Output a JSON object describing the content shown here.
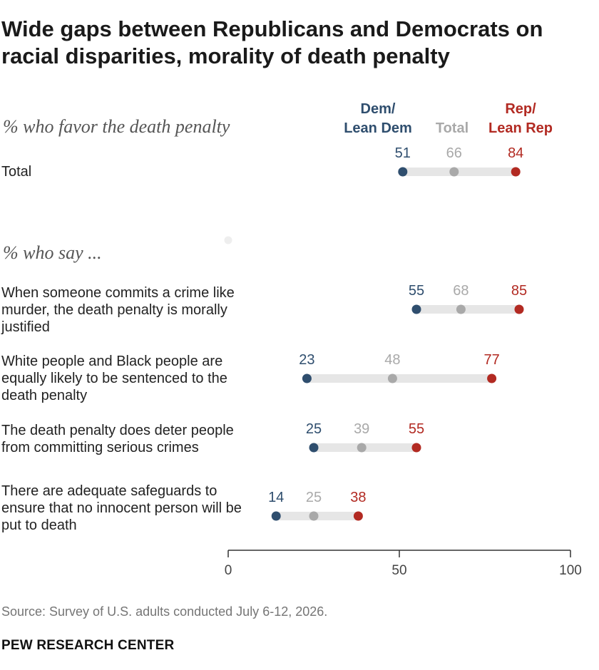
{
  "title": "Wide gaps between Republicans and Democrats on racial disparities, morality of death penalty",
  "sections": {
    "favor_label": "% who favor the death penalty",
    "say_label": "% who say ..."
  },
  "legend": {
    "dem_line1": "Dem/",
    "dem_line2": "Lean Dem",
    "total": "Total",
    "rep_line1": "Rep/",
    "rep_line2": "Lean Rep"
  },
  "colors": {
    "dem": "#2f4e6e",
    "total": "#a9a9a9",
    "rep": "#b22a22",
    "connector": "#e6e6e6"
  },
  "source": "Source: Survey of U.S. adults conducted July 6-12, 2026.",
  "brand": "PEW RESEARCH CENTER",
  "chart_data": {
    "type": "dot",
    "xlim": [
      0,
      100
    ],
    "x_ticks": [
      "0",
      "50",
      "100"
    ],
    "series": [
      {
        "name": "Dem/Lean Dem",
        "values": [
          51,
          55,
          23,
          25,
          14
        ]
      },
      {
        "name": "Total",
        "values": [
          66,
          68,
          48,
          39,
          25
        ]
      },
      {
        "name": "Rep/Lean Rep",
        "values": [
          84,
          85,
          77,
          55,
          38
        ]
      }
    ],
    "categories": [
      "Total",
      "When someone commits a crime like murder, the death penalty is morally justified",
      "White people and Black people are equally likely to be sentenced to the death penalty",
      "The death penalty does deter people from committing serious crimes",
      "There are adequate safeguards to ensure that no innocent person will be put to death"
    ]
  }
}
